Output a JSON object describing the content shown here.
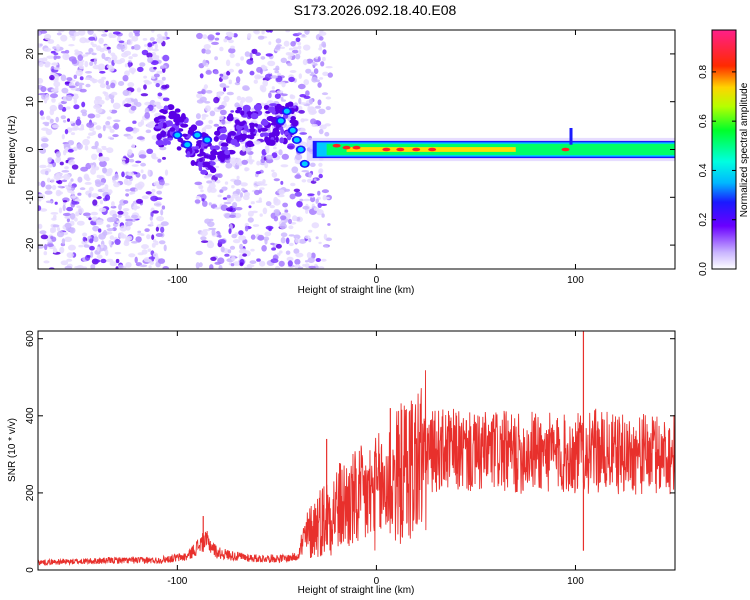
{
  "title": "S173.2026.092.18.40.E08",
  "chart_data": [
    {
      "type": "heatmap",
      "title": "S173.2026.092.18.40.E08",
      "xlabel": "Height of straight line (km)",
      "ylabel": "Frequency (Hz)",
      "xlim": [
        -170,
        150
      ],
      "ylim": [
        -25,
        25
      ],
      "xticks": [
        -100,
        0,
        100
      ],
      "yticks": [
        -20,
        -10,
        0,
        10,
        20
      ],
      "colorbar": {
        "label": "Normalized spectral amplitude",
        "range": [
          0,
          0.97
        ],
        "ticks": [
          0.0,
          0.2,
          0.4,
          0.6,
          0.8
        ]
      },
      "ridge": {
        "x": [
          -50,
          -45,
          -40,
          -35,
          -30,
          -25,
          -20,
          -10,
          0,
          10,
          20,
          40,
          60,
          80,
          100,
          120,
          150
        ],
        "frequency": [
          7,
          5,
          3,
          1,
          1,
          1,
          0.5,
          0.5,
          -0.5,
          0,
          0,
          0,
          0,
          0,
          0,
          0,
          0
        ]
      }
    },
    {
      "type": "line",
      "xlabel": "Height of straight line (km)",
      "ylabel": "SNR (10 * v/v)",
      "xlim": [
        -170,
        150
      ],
      "ylim": [
        0,
        620
      ],
      "xticks": [
        -100,
        0,
        100
      ],
      "yticks": [
        0,
        200,
        400,
        600
      ],
      "color": "#e8302c",
      "x": [
        -170,
        -150,
        -130,
        -110,
        -95,
        -88,
        -85,
        -80,
        -70,
        -60,
        -50,
        -45,
        -40,
        -36,
        -30,
        -25,
        -20,
        -15,
        -10,
        -5,
        0,
        5,
        10,
        15,
        20,
        25,
        30,
        40,
        50,
        60,
        70,
        80,
        90,
        95,
        100,
        104,
        106,
        110,
        120,
        130,
        140,
        150
      ],
      "y": [
        20,
        22,
        25,
        25,
        35,
        70,
        75,
        45,
        35,
        30,
        30,
        30,
        35,
        80,
        120,
        140,
        160,
        170,
        180,
        190,
        200,
        220,
        240,
        260,
        280,
        300,
        310,
        310,
        300,
        310,
        300,
        310,
        300,
        300,
        300,
        310,
        300,
        310,
        300,
        300,
        300,
        300
      ],
      "spikes": [
        {
          "x": -87,
          "y": 140
        },
        {
          "x": -25,
          "y": 340
        },
        {
          "x": 7,
          "y": 420
        },
        {
          "x": 104,
          "y": 620
        },
        {
          "x": 104,
          "y": 50
        }
      ]
    }
  ]
}
